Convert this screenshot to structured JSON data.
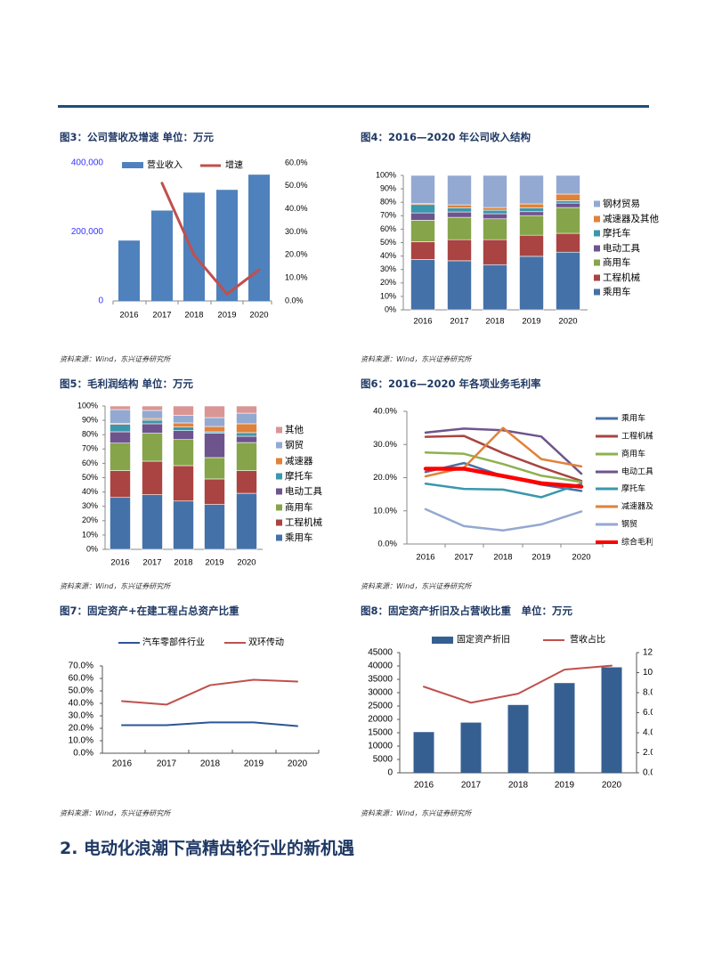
{
  "header": {
    "rule_color": "#1f4e79"
  },
  "figures": [
    {
      "title": "图3：公司营收及增速 单位：万元",
      "source": "资料来源：Wind，东兴证券研究所"
    },
    {
      "title": "图4：2016—2020 年公司收入结构",
      "source": "资料来源：Wind，东兴证券研究所"
    },
    {
      "title": "图5：毛利润结构 单位：万元",
      "source": "资料来源：Wind，东兴证券研究所"
    },
    {
      "title": "图6：2016—2020 年各项业务毛利率",
      "source": "资料来源：Wind，东兴证券研究所"
    },
    {
      "title": "图7：固定资产+在建工程占总资产比重",
      "source": "资料来源：Wind，东兴证券研究所"
    },
    {
      "title": "图8：固定资产折旧及占营收比重　单位：万元",
      "source": "资料来源：Wind，东兴证券研究所"
    }
  ],
  "section_heading": "2. 电动化浪潮下高精齿轮行业的新机遇",
  "chart_data": [
    {
      "type": "bar+line",
      "categories": [
        "2016",
        "2017",
        "2018",
        "2019",
        "2020"
      ],
      "series": [
        {
          "name": "营业收入",
          "axis": "left",
          "type": "bar",
          "color": "#4f81bd",
          "values": [
            175000,
            262000,
            314000,
            322000,
            366000
          ]
        },
        {
          "name": "增速",
          "axis": "right",
          "type": "line",
          "color": "#c0504d",
          "values": [
            null,
            51.2,
            20.0,
            3.0,
            13.5
          ]
        }
      ],
      "left_ticks": [
        "0",
        "200,000",
        "400,000"
      ],
      "left_tick_color": "#3333ff",
      "ylim_left": [
        0,
        400000
      ],
      "right_ticks": [
        "0.0%",
        "10.0%",
        "20.0%",
        "30.0%",
        "40.0%",
        "50.0%",
        "60.0%"
      ],
      "ylim_right": [
        0,
        60
      ],
      "legend": "top"
    },
    {
      "type": "stacked-bar",
      "categories": [
        "2016",
        "2017",
        "2018",
        "2019",
        "2020"
      ],
      "ticks": [
        "0%",
        "10%",
        "20%",
        "30%",
        "40%",
        "50%",
        "60%",
        "70%",
        "80%",
        "90%",
        "100%"
      ],
      "ylim": [
        0,
        100
      ],
      "legend": "right",
      "series": [
        {
          "name": "乘用车",
          "color": "#4472a8",
          "values": [
            37.4,
            36.5,
            33.6,
            39.8,
            42.9
          ]
        },
        {
          "name": "工程机械",
          "color": "#a94442",
          "values": [
            13.3,
            15.7,
            18.6,
            15.7,
            14.0
          ]
        },
        {
          "name": "商用车",
          "color": "#86a44a",
          "values": [
            15.9,
            16.6,
            15.5,
            14.6,
            19.2
          ]
        },
        {
          "name": "电动工具",
          "color": "#6e548d",
          "values": [
            5.5,
            4.0,
            3.8,
            2.9,
            3.3
          ]
        },
        {
          "name": "摩托车",
          "color": "#3a97ad",
          "values": [
            6.2,
            2.9,
            2.6,
            2.7,
            1.8
          ]
        },
        {
          "name": "减速器及其他",
          "color": "#e0823a",
          "values": [
            0.7,
            2.4,
            2.0,
            3.1,
            4.9
          ]
        },
        {
          "name": "钢材贸易",
          "color": "#93a9d1",
          "values": [
            21.0,
            21.9,
            23.9,
            21.2,
            13.9
          ]
        }
      ]
    },
    {
      "type": "stacked-bar",
      "categories": [
        "2016",
        "2017",
        "2018",
        "2019",
        "2020"
      ],
      "ticks": [
        "0%",
        "10%",
        "20%",
        "30%",
        "40%",
        "50%",
        "60%",
        "70%",
        "80%",
        "90%",
        "100%"
      ],
      "ylim": [
        0,
        100
      ],
      "legend": "right",
      "series": [
        {
          "name": "乘用车",
          "color": "#4472a8",
          "values": [
            36.2,
            38.1,
            33.7,
            31.3,
            39.1
          ]
        },
        {
          "name": "工程机械",
          "color": "#a94442",
          "values": [
            18.7,
            23.4,
            24.7,
            17.8,
            15.8
          ]
        },
        {
          "name": "商用车",
          "color": "#86a44a",
          "values": [
            19.2,
            19.5,
            18.2,
            14.9,
            19.6
          ]
        },
        {
          "name": "电动工具",
          "color": "#6e548d",
          "values": [
            7.9,
            6.6,
            6.2,
            17.0,
            4.4
          ]
        },
        {
          "name": "摩托车",
          "color": "#3a97ad",
          "values": [
            5.2,
            2.5,
            2.5,
            1.0,
            2.5
          ]
        },
        {
          "name": "减速器",
          "color": "#e0823a",
          "values": [
            0.6,
            1.2,
            2.9,
            3.7,
            6.2
          ]
        },
        {
          "name": "钢贸",
          "color": "#93a9d1",
          "values": [
            9.7,
            5.6,
            5.2,
            6.2,
            7.4
          ]
        },
        {
          "name": "其他",
          "color": "#d99694",
          "values": [
            2.5,
            3.1,
            6.6,
            8.1,
            5.0
          ]
        }
      ]
    },
    {
      "type": "line",
      "categories": [
        "2016",
        "2017",
        "2018",
        "2019",
        "2020"
      ],
      "ticks": [
        "0.0%",
        "10.0%",
        "20.0%",
        "30.0%",
        "40.0%"
      ],
      "ylim": [
        0,
        40
      ],
      "legend": "right",
      "series": [
        {
          "name": "乘用车",
          "color": "#4472a8",
          "values": [
            21.7,
            24.4,
            20.5,
            17.9,
            16.0
          ]
        },
        {
          "name": "工程机械",
          "color": "#a94442",
          "values": [
            32.3,
            32.6,
            27.4,
            23.1,
            19.0
          ]
        },
        {
          "name": "商用车",
          "color": "#8eb04e",
          "values": [
            27.6,
            27.2,
            24.1,
            20.6,
            18.7
          ]
        },
        {
          "name": "电动工具",
          "color": "#6e548d",
          "values": [
            33.6,
            34.8,
            34.3,
            32.4,
            21.2
          ]
        },
        {
          "name": "摩托车",
          "color": "#3a97ad",
          "values": [
            18.2,
            16.6,
            16.4,
            14.1,
            18.2
          ]
        },
        {
          "name": "减速器及其他",
          "color": "#e0823a",
          "values": [
            20.4,
            23.0,
            35.0,
            25.6,
            23.4
          ]
        },
        {
          "name": "钢贸",
          "color": "#93a9d1",
          "values": [
            10.5,
            5.4,
            4.1,
            5.9,
            9.8
          ]
        },
        {
          "name": "综合毛利率",
          "color": "#ff0000",
          "values": [
            22.7,
            22.7,
            20.5,
            18.3,
            17.3
          ]
        }
      ]
    },
    {
      "type": "line",
      "categories": [
        "2016",
        "2017",
        "2018",
        "2019",
        "2020"
      ],
      "ticks": [
        "0.0%",
        "10.0%",
        "20.0%",
        "30.0%",
        "40.0%",
        "50.0%",
        "60.0%",
        "70.0%"
      ],
      "ylim": [
        0,
        70
      ],
      "legend": "top",
      "series": [
        {
          "name": "汽车零部件行业",
          "color": "#2e5597",
          "values": [
            22.5,
            22.5,
            24.7,
            24.7,
            21.8
          ]
        },
        {
          "name": "双环传动",
          "color": "#c0504d",
          "values": [
            41.8,
            39.0,
            54.6,
            58.9,
            57.5
          ]
        }
      ]
    },
    {
      "type": "bar+line",
      "categories": [
        "2016",
        "2017",
        "2018",
        "2019",
        "2020"
      ],
      "series": [
        {
          "name": "固定资产折旧",
          "axis": "left",
          "type": "bar",
          "color": "#365f91",
          "values": [
            15250,
            18800,
            25400,
            33600,
            39500
          ]
        },
        {
          "name": "营收占比",
          "axis": "right",
          "type": "line",
          "color": "#c0504d",
          "values": [
            8.6,
            7.0,
            7.9,
            10.3,
            10.7
          ]
        }
      ],
      "left_ticks": [
        "0",
        "5000",
        "10000",
        "15000",
        "20000",
        "25000",
        "30000",
        "35000",
        "40000",
        "45000"
      ],
      "ylim_left": [
        0,
        45000
      ],
      "right_ticks": [
        "0.0",
        "2.0",
        "4.0",
        "6.0",
        "8.0",
        "10",
        "12"
      ],
      "ylim_right": [
        0,
        12
      ],
      "legend": "top"
    }
  ]
}
